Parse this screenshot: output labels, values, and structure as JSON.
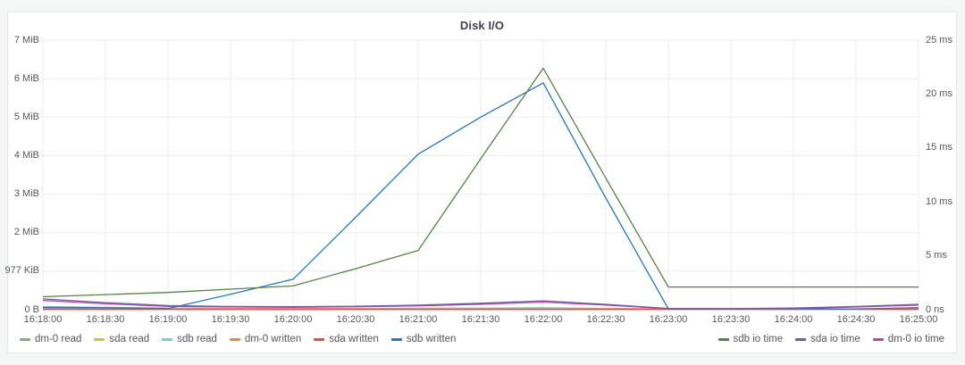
{
  "panel": {
    "title": "Disk I/O"
  },
  "chart_data": {
    "type": "line",
    "x": [
      "16:18:00",
      "16:18:30",
      "16:19:00",
      "16:19:30",
      "16:20:00",
      "16:20:30",
      "16:21:00",
      "16:21:30",
      "16:22:00",
      "16:22:30",
      "16:23:00",
      "16:23:30",
      "16:24:00",
      "16:24:30",
      "16:25:00"
    ],
    "left_axis": {
      "unit": "bytes",
      "tick_labels": [
        "0 B",
        "977 KiB",
        "2 MiB",
        "3 MiB",
        "4 MiB",
        "5 MiB",
        "6 MiB",
        "7 MiB"
      ],
      "tick_values": [
        0,
        1,
        2,
        3,
        4,
        5,
        6,
        7
      ],
      "range": [
        0,
        7
      ],
      "note": "linear in bytes, 1 axis unit = 1e6 bytes; labels are Grafana binary-rounded"
    },
    "right_axis": {
      "unit": "ms",
      "tick_labels": [
        "0 ns",
        "5 ms",
        "10 ms",
        "15 ms",
        "20 ms",
        "25 ms"
      ],
      "tick_values": [
        0,
        5,
        10,
        15,
        20,
        25
      ],
      "range": [
        0,
        25
      ]
    },
    "grid": true,
    "series": [
      {
        "name": "dm-0 read",
        "color": "#7EB26D",
        "axis": "left",
        "values": [
          0.03,
          0.03,
          0.02,
          0.02,
          0.02,
          0.02,
          0.03,
          0.03,
          0.04,
          0.03,
          0.02,
          0.02,
          0.02,
          0.02,
          0.02
        ]
      },
      {
        "name": "sda read",
        "color": "#EAB839",
        "axis": "left",
        "values": [
          0.01,
          0.01,
          0.01,
          0.01,
          0.01,
          0.01,
          0.01,
          0.01,
          0.01,
          0.01,
          0.01,
          0.01,
          0.01,
          0.01,
          0.01
        ]
      },
      {
        "name": "sdb read",
        "color": "#6ED0E0",
        "axis": "left",
        "values": [
          0.08,
          0.06,
          0.04,
          0.03,
          0.03,
          0.03,
          0.04,
          0.04,
          0.05,
          0.03,
          0.02,
          0.02,
          0.02,
          0.02,
          0.03
        ]
      },
      {
        "name": "dm-0 written",
        "color": "#EF843C",
        "axis": "left",
        "values": [
          0.02,
          0.02,
          0.02,
          0.02,
          0.02,
          0.02,
          0.02,
          0.02,
          0.02,
          0.02,
          0.02,
          0.02,
          0.02,
          0.02,
          0.02
        ]
      },
      {
        "name": "sda written",
        "color": "#E24D42",
        "axis": "left",
        "values": [
          0.01,
          0.01,
          0.01,
          0.01,
          0.01,
          0.01,
          0.01,
          0.01,
          0.01,
          0.01,
          0.01,
          0.01,
          0.01,
          0.01,
          0.01
        ]
      },
      {
        "name": "sdb written",
        "color": "#1F78C1",
        "axis": "left",
        "values": [
          0.06,
          0.05,
          0.03,
          0.4,
          0.79,
          2.4,
          4.04,
          5.0,
          5.89,
          2.9,
          0.02,
          0.02,
          0.02,
          0.02,
          0.05
        ]
      },
      {
        "name": "dm-0 io time",
        "color": "#BA43A9",
        "axis": "right",
        "values": [
          0.85,
          0.55,
          0.3,
          0.25,
          0.22,
          0.27,
          0.36,
          0.5,
          0.7,
          0.42,
          0.1,
          0.08,
          0.12,
          0.25,
          0.42
        ]
      },
      {
        "name": "sda io time",
        "color": "#705DA0",
        "axis": "right",
        "values": [
          1.0,
          0.65,
          0.38,
          0.3,
          0.28,
          0.32,
          0.42,
          0.6,
          0.82,
          0.5,
          0.12,
          0.1,
          0.15,
          0.3,
          0.5
        ]
      },
      {
        "name": "sdb io time",
        "color": "#508642",
        "axis": "right",
        "values": [
          1.2,
          1.4,
          1.6,
          1.9,
          2.2,
          3.8,
          5.5,
          14.0,
          22.4,
          12.2,
          2.1,
          2.1,
          2.1,
          2.1,
          2.1
        ]
      }
    ],
    "legend_left": [
      "dm-0 read",
      "sda read",
      "sdb read",
      "dm-0 written",
      "sda written",
      "sdb written"
    ],
    "legend_right": [
      "sdb io time",
      "sda io time",
      "dm-0 io time"
    ],
    "title": "Disk I/O",
    "xlabel": "",
    "ylabel_left": "",
    "ylabel_right": ""
  }
}
